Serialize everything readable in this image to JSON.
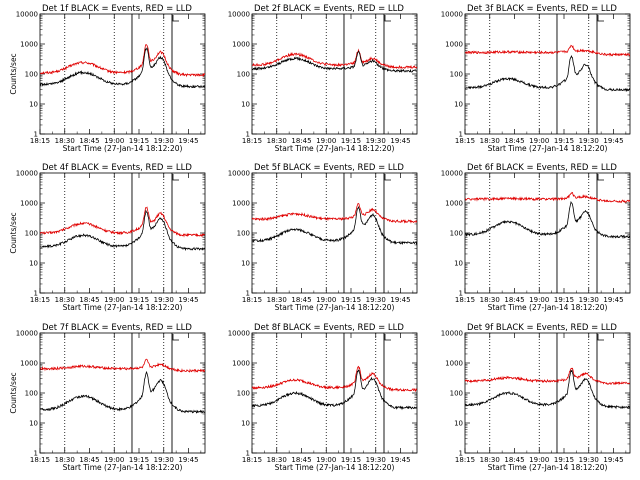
{
  "page": {
    "note_letter": "L"
  },
  "chart_data": [
    {
      "type": "line",
      "title": "Det 1f  BLACK = Events, RED = LLD",
      "xlabel": "Start Time (27-Jan-14 18:12:20)",
      "ylabel": "Counts/sec",
      "yscale": "log",
      "ylim": [
        1,
        10000
      ],
      "xlim": [
        0,
        40
      ],
      "x_tick_labels": [
        "18:15",
        "18:30",
        "18:45",
        "19:00",
        "19:15",
        "19:30",
        "19:45"
      ],
      "x_ticks": [
        0,
        6,
        12,
        18,
        24,
        30,
        36
      ],
      "y_tick_labels": [
        "1",
        "10",
        "100",
        "1000",
        "10000"
      ],
      "y_ticks": [
        1,
        10,
        100,
        1000,
        10000
      ],
      "dotted_x": [
        6,
        18,
        30
      ],
      "solid_x": [
        22.3,
        32
      ],
      "series": [
        {
          "color": "#e00000",
          "base": 110,
          "hump": 2.2,
          "flare": 8.0,
          "flare2": 3.8
        },
        {
          "color": "#000000",
          "base": 45,
          "hump": 2.5,
          "flare": 14.0,
          "flare2": 6.0
        }
      ]
    },
    {
      "type": "line",
      "title": "Det 2f  BLACK = Events, RED = LLD",
      "xlabel": "Start Time (27-Jan-14 18:12:20)",
      "ylabel": "",
      "yscale": "log",
      "ylim": [
        1,
        10000
      ],
      "xlim": [
        0,
        40
      ],
      "x_tick_labels": [
        "18:15",
        "18:30",
        "18:45",
        "19:00",
        "19:15",
        "19:30",
        "19:45"
      ],
      "x_ticks": [
        0,
        6,
        12,
        18,
        24,
        30,
        36
      ],
      "y_tick_labels": [
        "1",
        "10",
        "100",
        "1000",
        "10000"
      ],
      "y_ticks": [
        1,
        10,
        100,
        1000,
        10000
      ],
      "dotted_x": [
        6,
        18,
        30
      ],
      "solid_x": [
        22.3,
        32
      ],
      "series": [
        {
          "color": "#e00000",
          "base": 200,
          "hump": 2.3,
          "flare": 2.8,
          "flare2": 1.5
        },
        {
          "color": "#000000",
          "base": 150,
          "hump": 2.2,
          "flare": 3.3,
          "flare2": 1.6
        }
      ]
    },
    {
      "type": "line",
      "title": "Det 3f  BLACK = Events, RED = LLD",
      "xlabel": "Start Time (27-Jan-14 18:12:20)",
      "ylabel": "",
      "yscale": "log",
      "ylim": [
        1,
        10000
      ],
      "xlim": [
        0,
        40
      ],
      "x_tick_labels": [
        "18:15",
        "18:30",
        "18:45",
        "19:00",
        "19:15",
        "19:30",
        "19:45"
      ],
      "x_ticks": [
        0,
        6,
        12,
        18,
        24,
        30,
        36
      ],
      "y_tick_labels": [
        "1",
        "10",
        "100",
        "1000",
        "10000"
      ],
      "y_ticks": [
        1,
        10,
        100,
        1000,
        10000
      ],
      "dotted_x": [
        6,
        18,
        30
      ],
      "solid_x": [
        22.3,
        32
      ],
      "series": [
        {
          "color": "#e00000",
          "base": 520,
          "hump": 1.05,
          "flare": 1.6,
          "flare2": 1.05
        },
        {
          "color": "#000000",
          "base": 35,
          "hump": 2.0,
          "flare": 10.0,
          "flare2": 4.5
        }
      ]
    },
    {
      "type": "line",
      "title": "Det 4f  BLACK = Events, RED = LLD",
      "xlabel": "Start Time (27-Jan-14 18:12:20)",
      "ylabel": "Counts/sec",
      "yscale": "log",
      "ylim": [
        1,
        10000
      ],
      "xlim": [
        0,
        40
      ],
      "x_tick_labels": [
        "18:15",
        "18:30",
        "18:45",
        "19:00",
        "19:15",
        "19:30",
        "19:45"
      ],
      "x_ticks": [
        0,
        6,
        12,
        18,
        24,
        30,
        36
      ],
      "y_tick_labels": [
        "1",
        "10",
        "100",
        "1000",
        "10000"
      ],
      "y_ticks": [
        1,
        10,
        100,
        1000,
        10000
      ],
      "dotted_x": [
        6,
        18,
        30
      ],
      "solid_x": [
        22.3,
        32
      ],
      "series": [
        {
          "color": "#e00000",
          "base": 100,
          "hump": 2.1,
          "flare": 6.5,
          "flare2": 3.5
        },
        {
          "color": "#000000",
          "base": 35,
          "hump": 2.4,
          "flare": 13.0,
          "flare2": 6.5
        }
      ]
    },
    {
      "type": "line",
      "title": "Det 5f  BLACK = Events, RED = LLD",
      "xlabel": "Start Time (27-Jan-14 18:12:20)",
      "ylabel": "",
      "yscale": "log",
      "ylim": [
        1,
        10000
      ],
      "xlim": [
        0,
        40
      ],
      "x_tick_labels": [
        "18:15",
        "18:30",
        "18:45",
        "19:00",
        "19:15",
        "19:30",
        "19:45"
      ],
      "x_ticks": [
        0,
        6,
        12,
        18,
        24,
        30,
        36
      ],
      "y_tick_labels": [
        "1",
        "10",
        "100",
        "1000",
        "10000"
      ],
      "y_ticks": [
        1,
        10,
        100,
        1000,
        10000
      ],
      "dotted_x": [
        6,
        18,
        30
      ],
      "solid_x": [
        22.3,
        32
      ],
      "series": [
        {
          "color": "#e00000",
          "base": 290,
          "hump": 1.5,
          "flare": 2.9,
          "flare2": 1.8
        },
        {
          "color": "#000000",
          "base": 55,
          "hump": 2.4,
          "flare": 11.0,
          "flare2": 5.5
        }
      ]
    },
    {
      "type": "line",
      "title": "Det 6f  BLACK = Events, RED = LLD",
      "xlabel": "Start Time (27-Jan-14 18:12:20)",
      "ylabel": "",
      "yscale": "log",
      "ylim": [
        1,
        10000
      ],
      "xlim": [
        0,
        40
      ],
      "x_tick_labels": [
        "18:15",
        "18:30",
        "18:45",
        "19:00",
        "19:15",
        "19:30",
        "19:45"
      ],
      "x_ticks": [
        0,
        6,
        12,
        18,
        24,
        30,
        36
      ],
      "y_tick_labels": [
        "1",
        "10",
        "100",
        "1000",
        "10000"
      ],
      "y_ticks": [
        1,
        10,
        100,
        1000,
        10000
      ],
      "dotted_x": [
        6,
        18,
        30
      ],
      "solid_x": [
        22.3,
        32
      ],
      "series": [
        {
          "color": "#e00000",
          "base": 1350,
          "hump": 1.05,
          "flare": 1.5,
          "flare2": 1.1
        },
        {
          "color": "#000000",
          "base": 90,
          "hump": 2.6,
          "flare": 10.0,
          "flare2": 4.5
        }
      ]
    },
    {
      "type": "line",
      "title": "Det 7f  BLACK = Events, RED = LLD",
      "xlabel": "Start Time (27-Jan-14 18:12:20)",
      "ylabel": "Counts/sec",
      "yscale": "log",
      "ylim": [
        1,
        10000
      ],
      "xlim": [
        0,
        40
      ],
      "x_tick_labels": [
        "18:15",
        "18:30",
        "18:45",
        "19:00",
        "19:15",
        "19:30",
        "19:45"
      ],
      "x_ticks": [
        0,
        6,
        12,
        18,
        24,
        30,
        36
      ],
      "y_tick_labels": [
        "1",
        "10",
        "100",
        "1000",
        "10000"
      ],
      "y_ticks": [
        1,
        10,
        100,
        1000,
        10000
      ],
      "dotted_x": [
        6,
        18,
        30
      ],
      "solid_x": [
        22.3,
        32
      ],
      "series": [
        {
          "color": "#e00000",
          "base": 650,
          "hump": 1.2,
          "flare": 1.8,
          "flare2": 1.3
        },
        {
          "color": "#000000",
          "base": 28,
          "hump": 2.8,
          "flare": 14.0,
          "flare2": 7.0
        }
      ]
    },
    {
      "type": "line",
      "title": "Det 8f  BLACK = Events, RED = LLD",
      "xlabel": "Start Time (27-Jan-14 18:12:20)",
      "ylabel": "",
      "yscale": "log",
      "ylim": [
        1,
        10000
      ],
      "xlim": [
        0,
        40
      ],
      "x_tick_labels": [
        "18:15",
        "18:30",
        "18:45",
        "19:00",
        "19:15",
        "19:30",
        "19:45"
      ],
      "x_ticks": [
        0,
        6,
        12,
        18,
        24,
        30,
        36
      ],
      "y_tick_labels": [
        "1",
        "10",
        "100",
        "1000",
        "10000"
      ],
      "y_ticks": [
        1,
        10,
        100,
        1000,
        10000
      ],
      "dotted_x": [
        6,
        18,
        30
      ],
      "solid_x": [
        22.3,
        32
      ],
      "series": [
        {
          "color": "#e00000",
          "base": 150,
          "hump": 1.8,
          "flare": 4.5,
          "flare2": 2.4
        },
        {
          "color": "#000000",
          "base": 38,
          "hump": 2.6,
          "flare": 13.0,
          "flare2": 6.0
        }
      ]
    },
    {
      "type": "line",
      "title": "Det 9f  BLACK = Events, RED = LLD",
      "xlabel": "Start Time (27-Jan-14 18:12:20)",
      "ylabel": "",
      "yscale": "log",
      "ylim": [
        1,
        10000
      ],
      "xlim": [
        0,
        40
      ],
      "x_tick_labels": [
        "18:15",
        "18:30",
        "18:45",
        "19:00",
        "19:15",
        "19:30",
        "19:45"
      ],
      "x_ticks": [
        0,
        6,
        12,
        18,
        24,
        30,
        36
      ],
      "y_tick_labels": [
        "1",
        "10",
        "100",
        "1000",
        "10000"
      ],
      "y_ticks": [
        1,
        10,
        100,
        1000,
        10000
      ],
      "dotted_x": [
        6,
        18,
        30
      ],
      "solid_x": [
        22.3,
        32
      ],
      "series": [
        {
          "color": "#e00000",
          "base": 250,
          "hump": 1.3,
          "flare": 2.6,
          "flare2": 1.6
        },
        {
          "color": "#000000",
          "base": 40,
          "hump": 2.5,
          "flare": 12.0,
          "flare2": 5.5
        }
      ]
    }
  ]
}
